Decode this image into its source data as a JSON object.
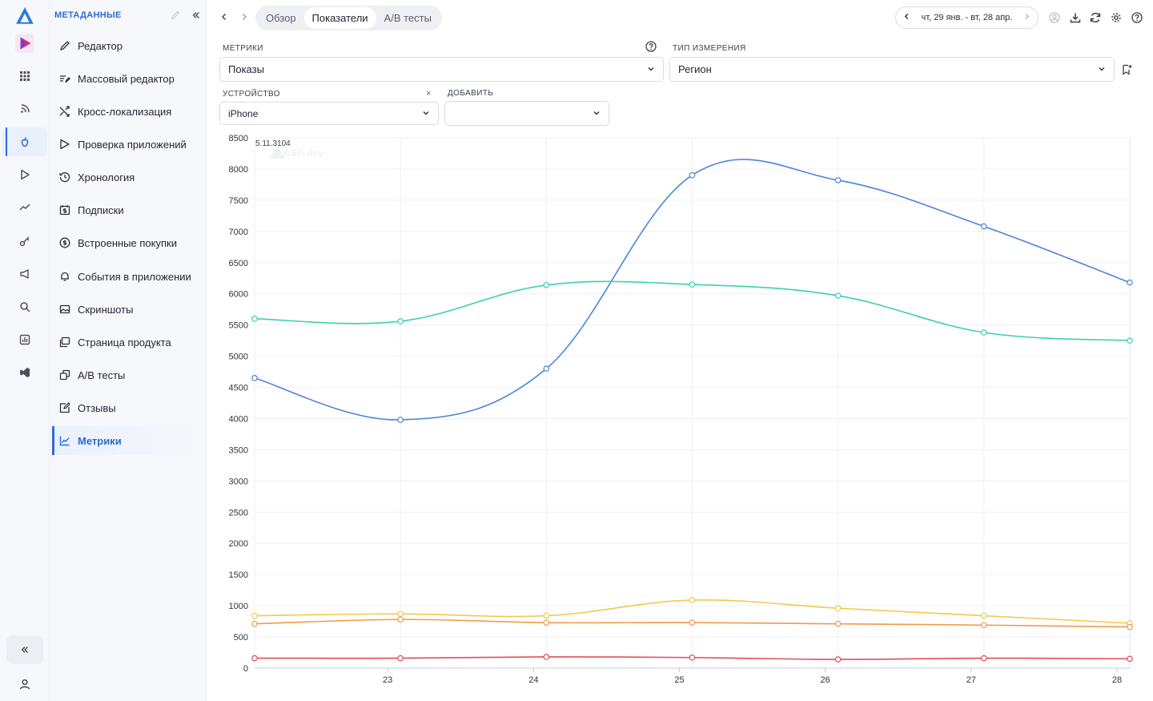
{
  "sidebar": {
    "section_title": "МЕТАДАННЫЕ",
    "items": [
      {
        "label": "Редактор",
        "icon": "pencil-icon"
      },
      {
        "label": "Массовый редактор",
        "icon": "bulk-edit-icon"
      },
      {
        "label": "Кросс-локализация",
        "icon": "shuffle-icon"
      },
      {
        "label": "Проверка приложений",
        "icon": "play-outline-icon"
      },
      {
        "label": "Хронология",
        "icon": "history-icon"
      },
      {
        "label": "Подписки",
        "icon": "calendar-dollar-icon"
      },
      {
        "label": "Встроенные покупки",
        "icon": "dollar-circle-icon"
      },
      {
        "label": "События в приложении",
        "icon": "bell-icon"
      },
      {
        "label": "Скриншоты",
        "icon": "image-icon"
      },
      {
        "label": "Страница продукта",
        "icon": "pages-icon"
      },
      {
        "label": "A/B тесты",
        "icon": "ab-icon"
      },
      {
        "label": "Отзывы",
        "icon": "review-icon"
      },
      {
        "label": "Метрики",
        "icon": "chart-line-icon",
        "active": true
      }
    ]
  },
  "topbar": {
    "tabs": [
      {
        "label": "Обзор"
      },
      {
        "label": "Показатели",
        "active": true
      },
      {
        "label": "A/B тесты"
      }
    ],
    "date_range": "чт, 29 янв. - вт, 28 апр."
  },
  "filters": {
    "metrics_label": "МЕТРИКИ",
    "metrics_value": "Показы",
    "dimension_label": "ТИП ИЗМЕРЕНИЯ",
    "dimension_value": "Регион",
    "device_label": "УСТРОЙСТВО",
    "device_value": "iPhone",
    "device_clear": "×",
    "add_label": "ДОБАВИТЬ",
    "add_value": ""
  },
  "chart_note": "5.11.3104",
  "colors": {
    "accent": "#2d6bd8",
    "series_blue": "#4a86d8",
    "series_teal": "#3dcfb0",
    "series_yellow": "#f2c94c",
    "series_orange": "#f2994a",
    "series_red": "#e04e5a"
  },
  "chart_data": {
    "type": "line",
    "x": [
      22,
      23,
      24,
      25,
      26,
      27,
      28
    ],
    "x_tick_labels": [
      "23",
      "24",
      "25",
      "26",
      "27",
      "28"
    ],
    "ylim": [
      0,
      8500
    ],
    "y_ticks": [
      0,
      500,
      1000,
      1500,
      2000,
      2500,
      3000,
      3500,
      4000,
      4500,
      5000,
      5500,
      6000,
      6500,
      7000,
      7500,
      8000,
      8500
    ],
    "grid": true,
    "series": [
      {
        "color": "#4a86d8",
        "values": [
          4650,
          3980,
          4800,
          7900,
          7820,
          7080,
          6180
        ]
      },
      {
        "color": "#3dcfb0",
        "values": [
          5600,
          5560,
          6140,
          6150,
          5970,
          5380,
          5250
        ]
      },
      {
        "color": "#f2c94c",
        "values": [
          840,
          870,
          840,
          1090,
          960,
          840,
          720
        ]
      },
      {
        "color": "#f2994a",
        "values": [
          710,
          780,
          730,
          730,
          710,
          690,
          660
        ]
      },
      {
        "color": "#e04e5a",
        "values": [
          160,
          160,
          180,
          170,
          140,
          160,
          150
        ]
      }
    ]
  }
}
